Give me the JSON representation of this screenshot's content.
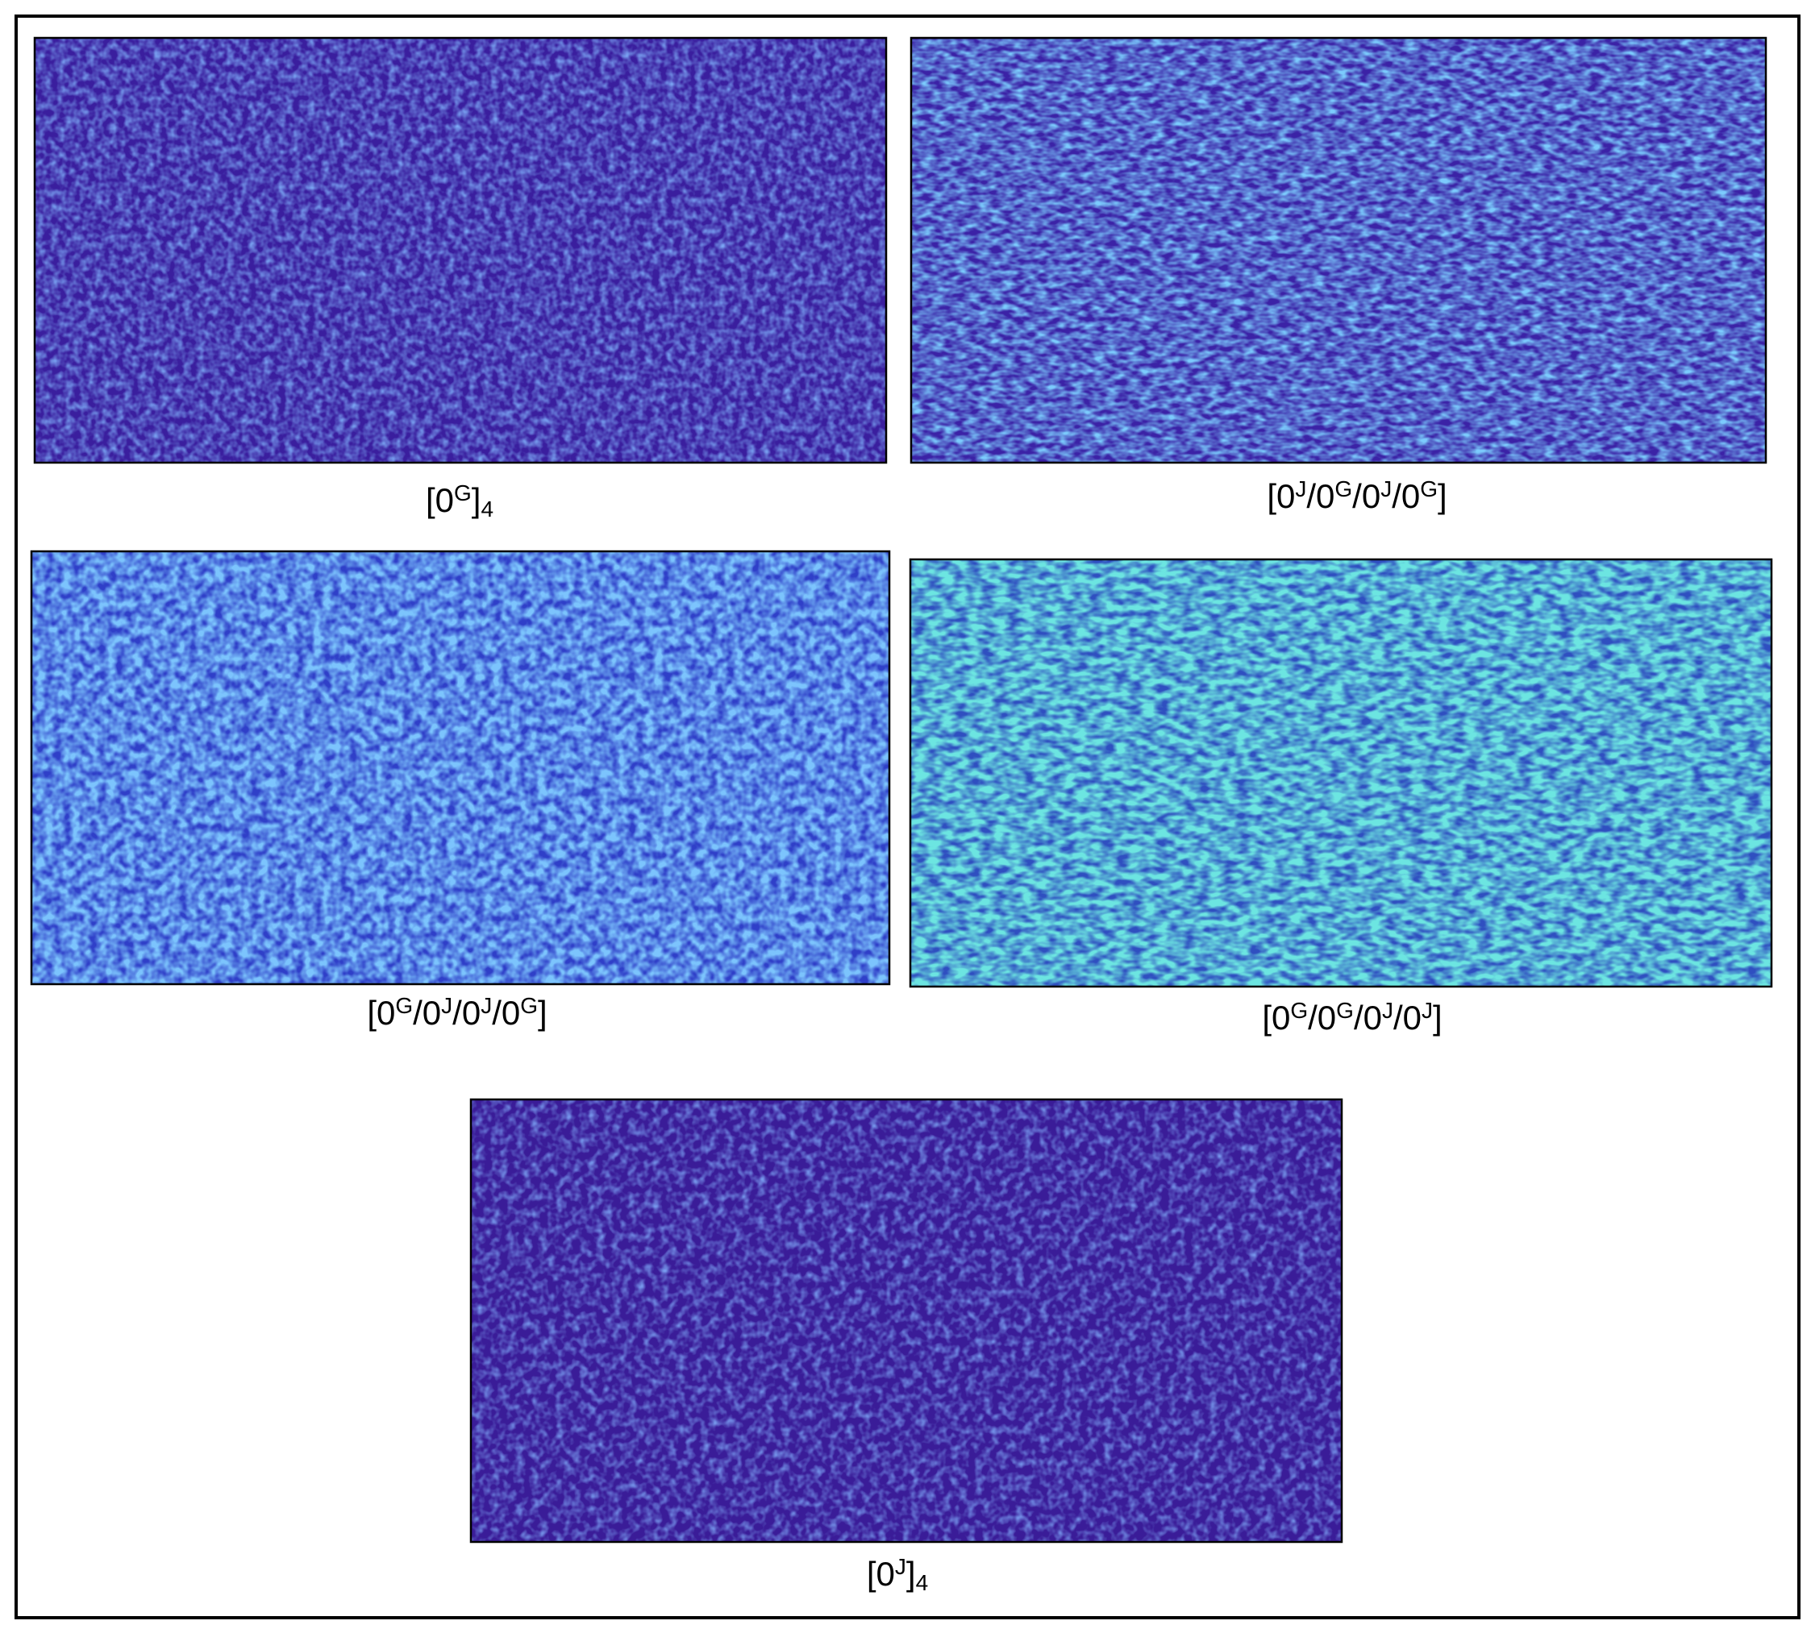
{
  "panels": [
    {
      "label": [
        "[0",
        {
          "sup": "G"
        },
        "]",
        {
          "sub": "4"
        }
      ]
    },
    {
      "label": [
        "[0",
        {
          "sup": "J"
        },
        "/0",
        {
          "sup": "G"
        },
        "/0",
        {
          "sup": "J"
        },
        "/0",
        {
          "sup": "G"
        },
        "]"
      ]
    },
    {
      "label": [
        "[0",
        {
          "sup": "G"
        },
        "/0",
        {
          "sup": "J"
        },
        "/0",
        {
          "sup": "J"
        },
        "/0",
        {
          "sup": "G"
        },
        "]"
      ]
    },
    {
      "label": [
        "[0",
        {
          "sup": "G"
        },
        "/0",
        {
          "sup": "G"
        },
        "/0",
        {
          "sup": "J"
        },
        "/0",
        {
          "sup": "J"
        },
        "]"
      ]
    },
    {
      "label": [
        "[0",
        {
          "sup": "J"
        },
        "]",
        {
          "sub": "4"
        }
      ]
    }
  ]
}
